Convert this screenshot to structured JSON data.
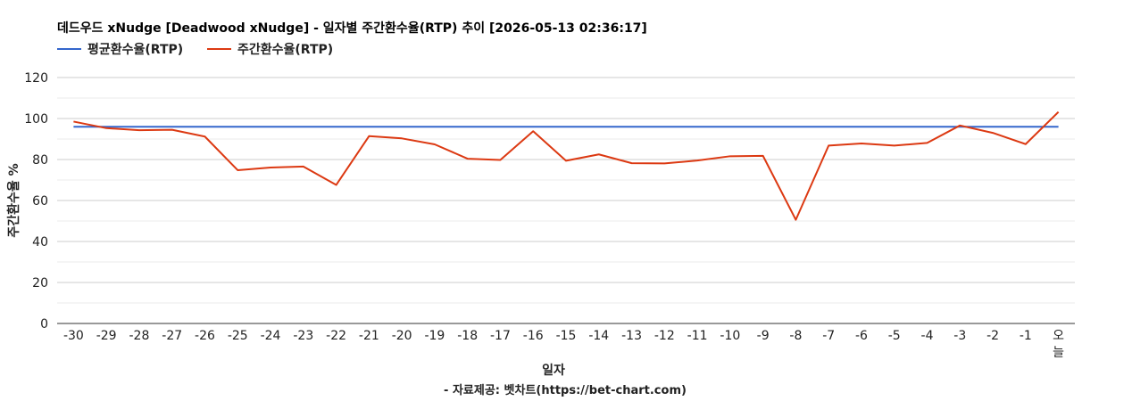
{
  "chart_data": {
    "type": "line",
    "title": "데드우드 xNudge [Deadwood xNudge] - 일자별 주간환수율(RTP) 추이 [2026-05-13 02:36:17]",
    "xlabel": "일자",
    "ylabel": "주간환수율 %",
    "footer": "- 자료제공: 벳차트(https://bet-chart.com)",
    "ylim": [
      0,
      120
    ],
    "yticks": [
      "0",
      "20",
      "40",
      "60",
      "80",
      "100",
      "120"
    ],
    "categories": [
      "-30",
      "-29",
      "-28",
      "-27",
      "-26",
      "-25",
      "-24",
      "-23",
      "-22",
      "-21",
      "-20",
      "-19",
      "-18",
      "-17",
      "-16",
      "-15",
      "-14",
      "-13",
      "-12",
      "-11",
      "-10",
      "-9",
      "-8",
      "-7",
      "-6",
      "-5",
      "-4",
      "-3",
      "-2",
      "-1",
      "오늘"
    ],
    "legend_position": "top-left",
    "grid": true,
    "series": [
      {
        "name": "평균환수율(RTP)",
        "color": "#3366cc",
        "values": [
          96,
          96,
          96,
          96,
          96,
          96,
          96,
          96,
          96,
          96,
          96,
          96,
          96,
          96,
          96,
          96,
          96,
          96,
          96,
          96,
          96,
          96,
          96,
          96,
          96,
          96,
          96,
          96,
          96,
          96,
          96
        ]
      },
      {
        "name": "주간환수율(RTP)",
        "color": "#dc3912",
        "values": [
          98.5,
          95.3,
          94.3,
          94.5,
          91.2,
          74.8,
          76.1,
          76.6,
          67.6,
          91.4,
          90.3,
          87.4,
          80.4,
          79.8,
          93.8,
          79.4,
          82.5,
          78.2,
          78.1,
          79.5,
          81.6,
          81.8,
          50.6,
          86.8,
          87.8,
          86.8,
          88.1,
          96.6,
          93.0,
          87.5,
          103.2
        ]
      }
    ]
  }
}
